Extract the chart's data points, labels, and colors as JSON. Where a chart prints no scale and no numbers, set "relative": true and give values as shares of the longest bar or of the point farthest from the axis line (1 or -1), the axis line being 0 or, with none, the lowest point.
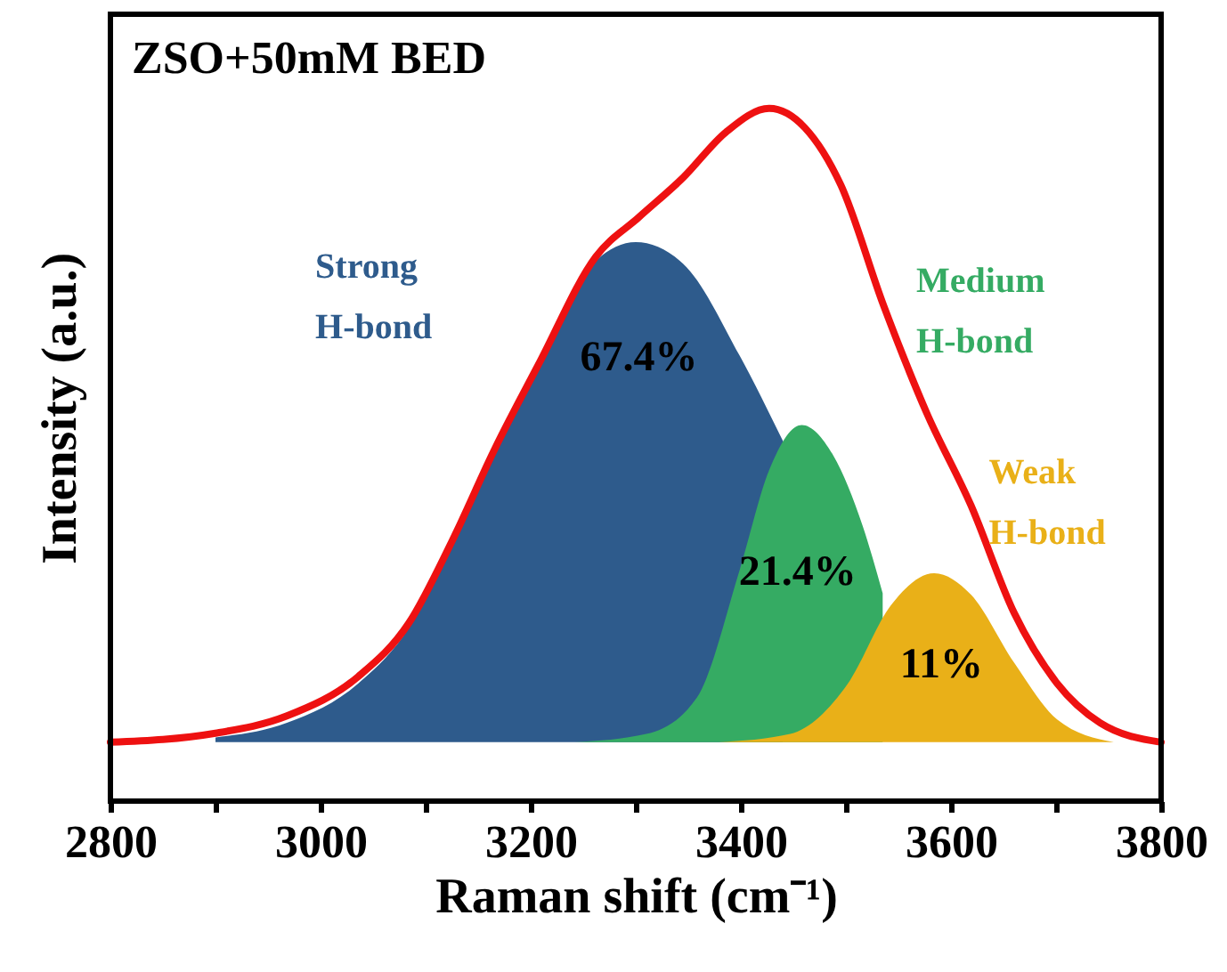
{
  "chart_data": {
    "type": "area",
    "relative": true,
    "title": "ZSO+50mM BED",
    "xlabel": "Raman shift (cm⁻¹)",
    "ylabel": "Intensity (a.u.)",
    "xlim": [
      2800,
      3800
    ],
    "xticks": [
      2800,
      {
        "value": 2900,
        "label": null
      },
      3000,
      {
        "value": 3100,
        "label": null
      },
      3200,
      {
        "value": 3300,
        "label": null
      },
      3400,
      {
        "value": 3500,
        "label": null
      },
      3600,
      {
        "value": 3700,
        "label": null
      },
      3800
    ],
    "grid": false,
    "series": [
      {
        "name": "Strong H-bond",
        "color": "#2e5b8c",
        "x": [
          2900,
          2968,
          3036,
          3084,
          3125,
          3166,
          3208,
          3262,
          3300,
          3345,
          3399,
          3440
        ],
        "values": [
          0.092,
          0.113,
          0.17,
          0.25,
          0.37,
          0.5,
          0.627,
          0.78,
          0.807,
          0.776,
          0.643,
          0.52
        ]
      },
      {
        "name": "Medium H-bond",
        "color": "#35ab63",
        "x": [
          3242,
          3310,
          3358,
          3399,
          3427,
          3458,
          3488,
          3516,
          3535
        ],
        "values": [
          0.085,
          0.097,
          0.149,
          0.334,
          0.478,
          0.543,
          0.499,
          0.397,
          0.3
        ]
      },
      {
        "name": "Weak H-bond",
        "color": "#e9b018",
        "x": [
          3379,
          3447,
          3502,
          3543,
          3584,
          3619,
          3660,
          3701,
          3755
        ],
        "values": [
          0.085,
          0.097,
          0.17,
          0.283,
          0.329,
          0.298,
          0.2,
          0.118,
          0.085
        ]
      },
      {
        "type": "line",
        "color": "#ee1111",
        "x": [
          2800,
          2900,
          2968,
          3036,
          3084,
          3125,
          3166,
          3208,
          3262,
          3303,
          3345,
          3386,
          3427,
          3461,
          3495,
          3536,
          3577,
          3619,
          3660,
          3701,
          3742,
          3800
        ],
        "values": [
          0.085,
          0.098,
          0.123,
          0.18,
          0.257,
          0.375,
          0.509,
          0.632,
          0.786,
          0.843,
          0.9,
          0.966,
          1.0,
          0.972,
          0.89,
          0.715,
          0.56,
          0.427,
          0.272,
          0.17,
          0.113,
          0.085
        ]
      }
    ],
    "annotations": [
      "67.4%",
      "21.4%",
      "11%"
    ]
  }
}
